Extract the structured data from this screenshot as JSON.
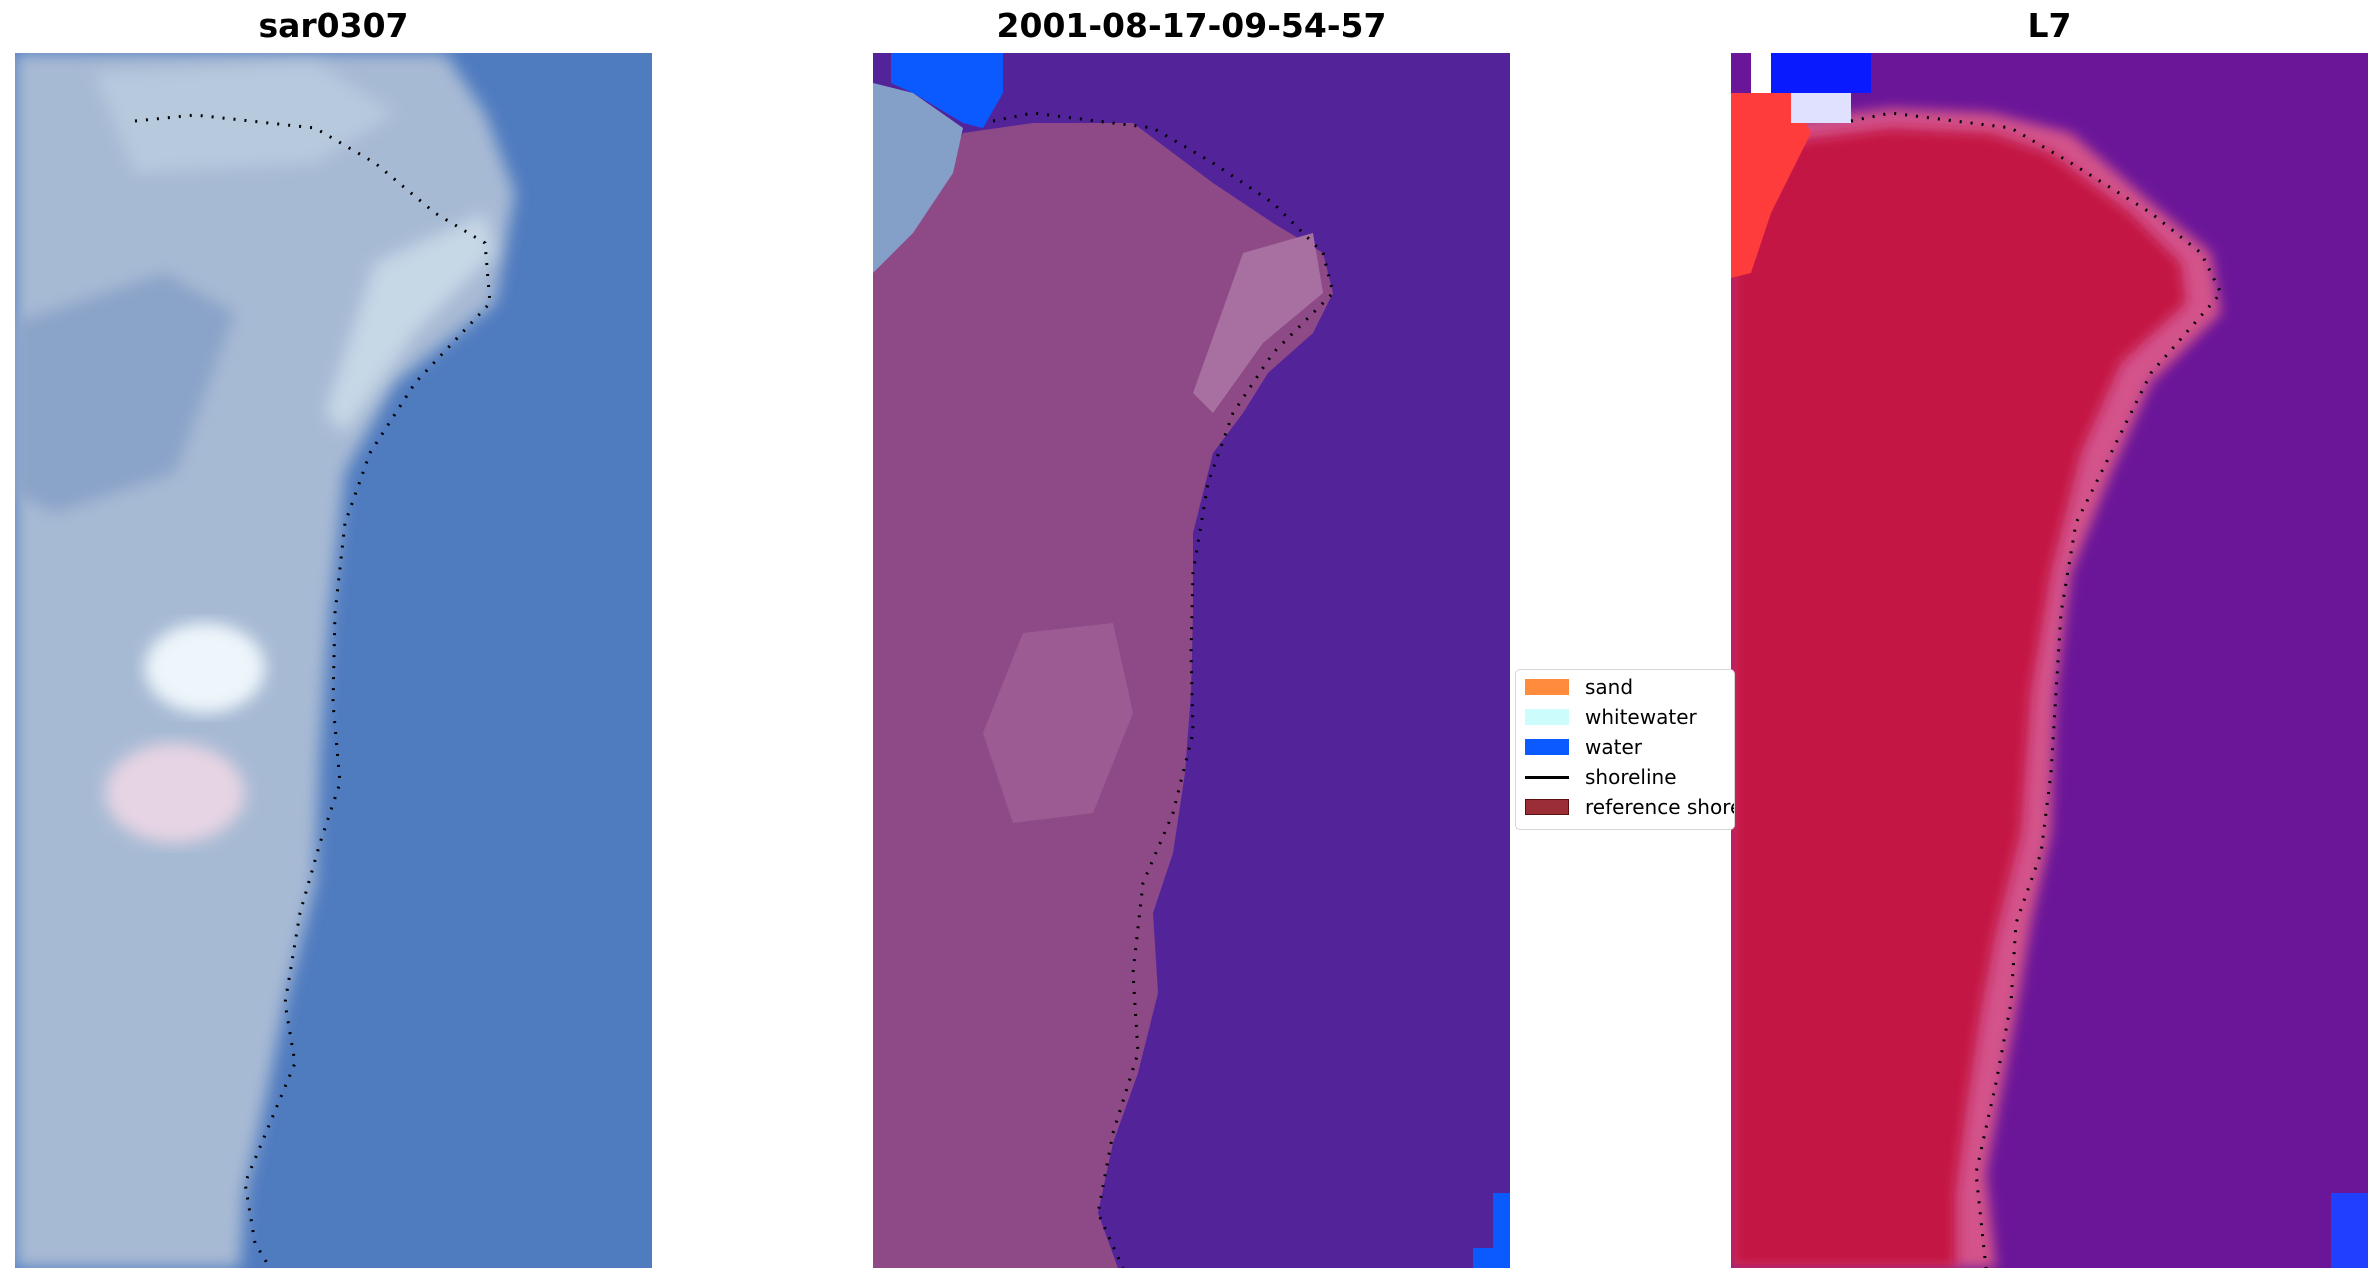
{
  "panels": [
    {
      "title": "sar0307"
    },
    {
      "title": "2001-08-17-09-54-57"
    },
    {
      "title": "L7"
    }
  ],
  "legend": {
    "items": [
      {
        "label": "sand",
        "color": "#ff8c3c",
        "kind": "patch"
      },
      {
        "label": "whitewater",
        "color": "#cdfcfc",
        "kind": "patch"
      },
      {
        "label": "water",
        "color": "#0a5aff",
        "kind": "patch"
      },
      {
        "label": "shoreline",
        "color": "#000000",
        "kind": "line"
      },
      {
        "label": "reference shoreline",
        "color": "#9b2d37",
        "kind": "patch"
      }
    ]
  },
  "colors": {
    "rgb_water": "#4f7bbf",
    "rgb_land": "#a9bcd6",
    "class_water": "#53239a",
    "class_land": "#8e4a86",
    "class_water_label": "#0a5aff",
    "ndwi_water": "#6b1699",
    "ndwi_land": "#c41445"
  }
}
